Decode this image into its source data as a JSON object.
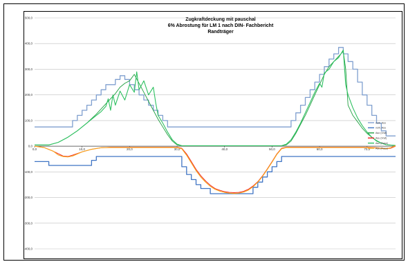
{
  "chart_data": {
    "type": "line",
    "title_lines": [
      "Zugkraftdeckung mit pauschal",
      "6% Abrostung für LM 1 nach DIN- Fachbericht",
      "Randträger"
    ],
    "xlim": [
      0,
      76
    ],
    "ylim": [
      -400,
      500
    ],
    "x_ticks": [
      {
        "v": 0,
        "label": "0,0"
      },
      {
        "v": 10,
        "label": "10,0"
      },
      {
        "v": 20,
        "label": "20,0"
      },
      {
        "v": 30,
        "label": "30,0"
      },
      {
        "v": 40,
        "label": "40,0"
      },
      {
        "v": 50,
        "label": "50,0"
      },
      {
        "v": 60,
        "label": "60,0"
      },
      {
        "v": 70,
        "label": "70,0"
      }
    ],
    "y_ticks": [
      {
        "v": 500,
        "label": "500,0"
      },
      {
        "v": 400,
        "label": "400,0"
      },
      {
        "v": 300,
        "label": "300,0"
      },
      {
        "v": 200,
        "label": "200,0"
      },
      {
        "v": 100,
        "label": "100,0"
      },
      {
        "v": 0,
        "label": "0,0"
      },
      {
        "v": -100,
        "label": "-100,0"
      },
      {
        "v": -200,
        "label": "-200,0"
      },
      {
        "v": -300,
        "label": "-300,0"
      },
      {
        "v": -400,
        "label": "-400,0"
      }
    ],
    "grid": "horizontal",
    "legend_position": "right",
    "series": [
      {
        "name": "vorh. Aso",
        "color": "#7f9fcf",
        "width": 1.3,
        "points": [
          [
            0,
            75
          ],
          [
            8,
            75
          ],
          [
            8,
            100
          ],
          [
            9,
            100
          ],
          [
            9,
            120
          ],
          [
            10,
            120
          ],
          [
            10,
            140
          ],
          [
            11,
            140
          ],
          [
            11,
            160
          ],
          [
            12,
            160
          ],
          [
            12,
            180
          ],
          [
            13,
            180
          ],
          [
            13,
            200
          ],
          [
            14,
            200
          ],
          [
            14,
            220
          ],
          [
            15,
            220
          ],
          [
            15,
            240
          ],
          [
            17,
            240
          ],
          [
            17,
            260
          ],
          [
            18,
            260
          ],
          [
            18,
            275
          ],
          [
            19,
            275
          ],
          [
            19,
            260
          ],
          [
            20,
            260
          ],
          [
            20,
            240
          ],
          [
            21,
            240
          ],
          [
            21,
            220
          ],
          [
            22,
            220
          ],
          [
            22,
            200
          ],
          [
            23,
            200
          ],
          [
            23,
            180
          ],
          [
            24,
            180
          ],
          [
            24,
            160
          ],
          [
            25,
            160
          ],
          [
            25,
            140
          ],
          [
            26,
            140
          ],
          [
            26,
            120
          ],
          [
            27,
            120
          ],
          [
            27,
            100
          ],
          [
            28,
            100
          ],
          [
            28,
            75
          ],
          [
            54,
            75
          ],
          [
            54,
            100
          ],
          [
            55,
            100
          ],
          [
            55,
            130
          ],
          [
            56,
            130
          ],
          [
            56,
            160
          ],
          [
            57,
            160
          ],
          [
            57,
            190
          ],
          [
            58,
            190
          ],
          [
            58,
            220
          ],
          [
            59,
            220
          ],
          [
            59,
            250
          ],
          [
            60,
            250
          ],
          [
            60,
            280
          ],
          [
            61,
            280
          ],
          [
            61,
            310
          ],
          [
            62,
            310
          ],
          [
            62,
            340
          ],
          [
            63,
            340
          ],
          [
            63,
            360
          ],
          [
            64,
            360
          ],
          [
            64,
            385
          ],
          [
            65,
            385
          ],
          [
            65,
            360
          ],
          [
            66,
            360
          ],
          [
            66,
            330
          ],
          [
            67,
            330
          ],
          [
            67,
            300
          ],
          [
            68,
            300
          ],
          [
            68,
            250
          ],
          [
            69,
            250
          ],
          [
            69,
            200
          ],
          [
            70,
            200
          ],
          [
            70,
            160
          ],
          [
            71,
            160
          ],
          [
            71,
            120
          ],
          [
            72,
            120
          ],
          [
            72,
            90
          ],
          [
            73,
            90
          ],
          [
            73,
            60
          ],
          [
            74,
            60
          ],
          [
            74,
            40
          ],
          [
            76,
            40
          ]
        ]
      },
      {
        "name": "vorh. Asu",
        "color": "#3f74c4",
        "width": 1.3,
        "points": [
          [
            0,
            -60
          ],
          [
            3,
            -60
          ],
          [
            3,
            -75
          ],
          [
            12,
            -75
          ],
          [
            12,
            -55
          ],
          [
            13,
            -55
          ],
          [
            13,
            -40
          ],
          [
            31,
            -40
          ],
          [
            31,
            -80
          ],
          [
            32,
            -80
          ],
          [
            32,
            -110
          ],
          [
            33,
            -110
          ],
          [
            33,
            -130
          ],
          [
            34,
            -130
          ],
          [
            34,
            -150
          ],
          [
            35,
            -150
          ],
          [
            35,
            -165
          ],
          [
            37,
            -165
          ],
          [
            37,
            -185
          ],
          [
            46,
            -185
          ],
          [
            46,
            -160
          ],
          [
            47,
            -160
          ],
          [
            47,
            -140
          ],
          [
            48,
            -140
          ],
          [
            48,
            -120
          ],
          [
            49,
            -120
          ],
          [
            49,
            -100
          ],
          [
            50,
            -100
          ],
          [
            50,
            -80
          ],
          [
            51,
            -80
          ],
          [
            51,
            -60
          ],
          [
            52,
            -60
          ],
          [
            52,
            -40
          ],
          [
            76,
            -40
          ]
        ]
      },
      {
        "name": "Aso (Vraf)",
        "color": "#1f9f3f",
        "width": 0.9,
        "points": [
          [
            0,
            5
          ],
          [
            3,
            5
          ],
          [
            5,
            15
          ],
          [
            7,
            35
          ],
          [
            9,
            60
          ],
          [
            11,
            90
          ],
          [
            13,
            125
          ],
          [
            15,
            165
          ],
          [
            17,
            205
          ],
          [
            18,
            230
          ],
          [
            19,
            245
          ],
          [
            20,
            255
          ],
          [
            21,
            280
          ],
          [
            22,
            245
          ],
          [
            23,
            210
          ],
          [
            24,
            175
          ],
          [
            25,
            140
          ],
          [
            26,
            105
          ],
          [
            27,
            75
          ],
          [
            28,
            45
          ],
          [
            29,
            20
          ],
          [
            30,
            5
          ],
          [
            31,
            2
          ],
          [
            52,
            2
          ],
          [
            53,
            5
          ],
          [
            54,
            20
          ],
          [
            55,
            50
          ],
          [
            56,
            85
          ],
          [
            57,
            120
          ],
          [
            58,
            160
          ],
          [
            59,
            200
          ],
          [
            60,
            240
          ],
          [
            61,
            280
          ],
          [
            62,
            310
          ],
          [
            63,
            330
          ],
          [
            64,
            350
          ],
          [
            65,
            370
          ],
          [
            65.5,
            300
          ],
          [
            66,
            160
          ],
          [
            67,
            120
          ],
          [
            68,
            95
          ],
          [
            69,
            70
          ],
          [
            70,
            50
          ],
          [
            71,
            35
          ],
          [
            72,
            20
          ],
          [
            73,
            12
          ],
          [
            74,
            6
          ],
          [
            76,
            3
          ]
        ]
      },
      {
        "name": "Asu (Vraf)",
        "color": "#f01e1e",
        "width": 0.9,
        "points": [
          [
            0,
            0
          ],
          [
            2,
            -5
          ],
          [
            4,
            -20
          ],
          [
            6,
            -38
          ],
          [
            7,
            -40
          ],
          [
            8,
            -35
          ],
          [
            10,
            -22
          ],
          [
            12,
            -12
          ],
          [
            14,
            -6
          ],
          [
            16,
            -4
          ],
          [
            30,
            -4
          ],
          [
            31,
            -8
          ],
          [
            32,
            -30
          ],
          [
            33,
            -60
          ],
          [
            34,
            -90
          ],
          [
            35,
            -115
          ],
          [
            36,
            -135
          ],
          [
            37,
            -152
          ],
          [
            38,
            -165
          ],
          [
            39,
            -172
          ],
          [
            40,
            -177
          ],
          [
            41,
            -180
          ],
          [
            42,
            -181
          ],
          [
            43,
            -180
          ],
          [
            44,
            -176
          ],
          [
            45,
            -168
          ],
          [
            46,
            -155
          ],
          [
            47,
            -138
          ],
          [
            48,
            -115
          ],
          [
            49,
            -88
          ],
          [
            50,
            -60
          ],
          [
            51,
            -30
          ],
          [
            52,
            -8
          ],
          [
            53,
            -4
          ],
          [
            70,
            -4
          ],
          [
            72,
            -6
          ],
          [
            74,
            -10
          ],
          [
            75,
            -8
          ],
          [
            76,
            0
          ]
        ]
      },
      {
        "name": "Aso (Rase)",
        "color": "#2dc060",
        "width": 1.1,
        "points": [
          [
            0,
            5
          ],
          [
            3,
            5
          ],
          [
            5,
            15
          ],
          [
            7,
            35
          ],
          [
            9,
            60
          ],
          [
            11,
            90
          ],
          [
            13,
            120
          ],
          [
            14,
            135
          ],
          [
            15,
            155
          ],
          [
            15.5,
            185
          ],
          [
            16,
            140
          ],
          [
            16.5,
            200
          ],
          [
            17,
            160
          ],
          [
            18,
            215
          ],
          [
            19,
            180
          ],
          [
            20,
            240
          ],
          [
            21,
            210
          ],
          [
            21.5,
            290
          ],
          [
            22,
            220
          ],
          [
            23,
            255
          ],
          [
            24,
            200
          ],
          [
            25,
            230
          ],
          [
            25.5,
            170
          ],
          [
            26,
            120
          ],
          [
            27,
            90
          ],
          [
            28,
            55
          ],
          [
            29,
            25
          ],
          [
            30,
            8
          ],
          [
            31,
            2
          ],
          [
            52,
            2
          ],
          [
            53,
            8
          ],
          [
            54,
            25
          ],
          [
            55,
            55
          ],
          [
            56,
            90
          ],
          [
            57,
            130
          ],
          [
            57.5,
            150
          ],
          [
            58,
            170
          ],
          [
            59,
            210
          ],
          [
            60,
            245
          ],
          [
            60.5,
            230
          ],
          [
            61,
            285
          ],
          [
            62,
            300
          ],
          [
            63,
            330
          ],
          [
            64,
            345
          ],
          [
            65,
            375
          ],
          [
            65.5,
            240
          ],
          [
            66,
            200
          ],
          [
            67,
            150
          ],
          [
            68,
            110
          ],
          [
            69,
            80
          ],
          [
            70,
            55
          ],
          [
            71,
            35
          ],
          [
            72,
            22
          ],
          [
            73,
            12
          ],
          [
            74,
            6
          ],
          [
            76,
            3
          ]
        ]
      },
      {
        "name": "Asu (Rase)",
        "color": "#f7a21e",
        "width": 1.2,
        "points": [
          [
            0,
            0
          ],
          [
            2,
            -5
          ],
          [
            4,
            -20
          ],
          [
            5,
            -34
          ],
          [
            6,
            -40
          ],
          [
            7,
            -42
          ],
          [
            8,
            -38
          ],
          [
            9,
            -30
          ],
          [
            10,
            -22
          ],
          [
            12,
            -12
          ],
          [
            14,
            -6
          ],
          [
            16,
            -5
          ],
          [
            30,
            -5
          ],
          [
            31,
            -10
          ],
          [
            32,
            -35
          ],
          [
            33,
            -65
          ],
          [
            34,
            -95
          ],
          [
            35,
            -120
          ],
          [
            36,
            -140
          ],
          [
            37,
            -156
          ],
          [
            38,
            -168
          ],
          [
            39,
            -175
          ],
          [
            40,
            -180
          ],
          [
            41,
            -183
          ],
          [
            42,
            -184
          ],
          [
            43,
            -183
          ],
          [
            44,
            -179
          ],
          [
            45,
            -171
          ],
          [
            46,
            -158
          ],
          [
            47,
            -140
          ],
          [
            48,
            -117
          ],
          [
            49,
            -90
          ],
          [
            50,
            -62
          ],
          [
            51,
            -32
          ],
          [
            52,
            -10
          ],
          [
            53,
            -5
          ],
          [
            70,
            -5
          ],
          [
            72,
            -7
          ],
          [
            74,
            -10
          ],
          [
            75,
            -6
          ],
          [
            76,
            2
          ]
        ]
      }
    ]
  }
}
